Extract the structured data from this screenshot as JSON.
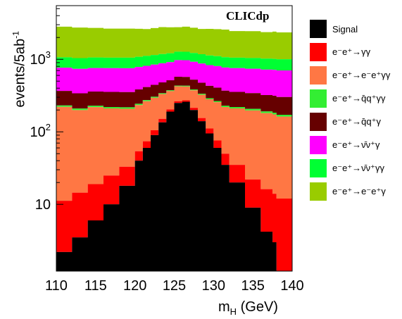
{
  "chart_data": {
    "type": "area",
    "title": "",
    "brand": "CLICdp",
    "xlabel": "m_H (GeV)",
    "xlabel_main": "m",
    "xlabel_sub": "H",
    "xlabel_unit": " (GeV)",
    "ylabel": "events/5ab",
    "ylabel_sup": "-1",
    "xlim": [
      110,
      140
    ],
    "ylim": [
      1.2,
      5500
    ],
    "yscale": "log",
    "stacked": true,
    "x_ticks": [
      "110",
      "115",
      "120",
      "125",
      "130",
      "135",
      "140"
    ],
    "y_ticks": [
      {
        "value": 10,
        "label": "10",
        "sup": ""
      },
      {
        "value": 100,
        "label": "10",
        "sup": "2"
      },
      {
        "value": 1000,
        "label": "10",
        "sup": "3"
      }
    ],
    "legend_position": "right",
    "x": [
      110,
      112,
      114,
      116,
      118,
      120,
      121,
      122,
      123,
      124,
      125,
      126,
      127,
      128,
      129,
      130,
      131,
      132,
      134,
      136,
      137.5,
      138,
      140
    ],
    "series": [
      {
        "name": "Signal",
        "color": "#000000",
        "values": [
          2.2,
          3.5,
          6,
          10,
          18,
          40,
          60,
          90,
          135,
          190,
          250,
          260,
          200,
          140,
          95,
          60,
          35,
          20,
          9,
          4.2,
          3,
          0,
          0
        ]
      },
      {
        "name": "e⁻e⁺→γγ",
        "color": "#ff0000",
        "values": [
          9,
          11,
          13,
          15,
          15,
          14,
          14,
          15,
          16,
          14,
          14,
          12,
          14,
          15,
          16,
          16,
          15,
          15,
          13,
          12,
          11,
          12,
          11
        ]
      },
      {
        "name": "e⁻e⁺→e⁻e⁺γγ",
        "color": "#ff7744",
        "values": [
          210,
          185,
          200,
          185,
          175,
          180,
          190,
          190,
          180,
          160,
          160,
          150,
          160,
          170,
          170,
          180,
          170,
          175,
          175,
          165,
          160,
          150,
          140
        ]
      },
      {
        "name": "e⁻e⁺→q̄q⁺γγ",
        "color": "#33ee33",
        "values": [
          10,
          10,
          10,
          10,
          10,
          10,
          10,
          10,
          10,
          10,
          10,
          10,
          10,
          10,
          10,
          10,
          10,
          10,
          10,
          10,
          10,
          10,
          10
        ]
      },
      {
        "name": "e⁻e⁺→q̄q⁺γ",
        "color": "#660000",
        "values": [
          135,
          130,
          130,
          135,
          135,
          140,
          140,
          140,
          140,
          140,
          140,
          140,
          140,
          140,
          140,
          140,
          140,
          135,
          135,
          130,
          130,
          130,
          130
        ]
      },
      {
        "name": "e⁻e⁺→ν̄ν⁺γ",
        "color": "#ff00ff",
        "values": [
          400,
          400,
          400,
          400,
          400,
          400,
          400,
          400,
          400,
          400,
          400,
          400,
          400,
          400,
          400,
          400,
          400,
          400,
          400,
          400,
          400,
          400,
          400
        ]
      },
      {
        "name": "e⁻e⁺→ν̄ν⁺γγ",
        "color": "#00ff33",
        "values": [
          300,
          300,
          300,
          300,
          300,
          300,
          300,
          300,
          300,
          300,
          300,
          300,
          300,
          300,
          300,
          300,
          300,
          300,
          300,
          300,
          300,
          300,
          300
        ]
      },
      {
        "name": "e⁻e⁺→e⁻e⁺γ",
        "color": "#99cc00",
        "values": [
          1750,
          1700,
          1650,
          1600,
          1600,
          1550,
          1500,
          1550,
          1600,
          1550,
          1500,
          1550,
          1500,
          1450,
          1500,
          1500,
          1500,
          1400,
          1400,
          1350,
          1400,
          1350,
          1350
        ]
      }
    ]
  }
}
